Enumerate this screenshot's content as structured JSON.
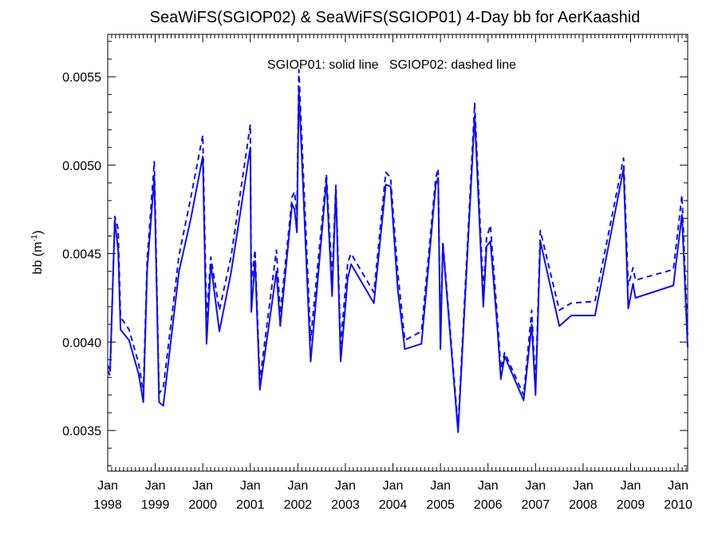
{
  "chart_data": {
    "type": "line",
    "title": "SeaWiFS(SGIOP02) & SeaWiFS(SGIOP01) 4-Day bb for AerKaashid",
    "annotation": "SGIOP01: solid line   SGIOP02: dashed line",
    "ylabel_main": "bb (m",
    "ylabel_sup": "-1",
    "ylabel_close": ")",
    "xlim": [
      1998.0,
      2010.2
    ],
    "ylim": [
      0.00327,
      0.00574
    ],
    "y_ticks": [
      0.0035,
      0.004,
      0.0045,
      0.005,
      0.0055
    ],
    "y_tick_labels": [
      "0.0035",
      "0.0040",
      "0.0045",
      "0.0050",
      "0.0055"
    ],
    "x_ticks": [
      1998,
      1999,
      2000,
      2001,
      2002,
      2003,
      2004,
      2005,
      2006,
      2007,
      2008,
      2009,
      2010
    ],
    "x_tick_month": "Jan",
    "x_tick_years": [
      "1998",
      "1999",
      "2000",
      "2001",
      "2002",
      "2003",
      "2004",
      "2005",
      "2006",
      "2007",
      "2008",
      "2009",
      "2010"
    ],
    "line_color": "#1010e0",
    "grid": false,
    "series": [
      {
        "style": "solid",
        "points": [
          [
            1998.0,
            0.00387
          ],
          [
            1998.05,
            0.00384
          ],
          [
            1998.15,
            0.00469
          ],
          [
            1998.22,
            0.00452
          ],
          [
            1998.27,
            0.00407
          ],
          [
            1998.45,
            0.00401
          ],
          [
            1998.65,
            0.00382
          ],
          [
            1998.75,
            0.00366
          ],
          [
            1998.83,
            0.00441
          ],
          [
            1998.98,
            0.00493
          ],
          [
            1999.08,
            0.00366
          ],
          [
            1999.17,
            0.00364
          ],
          [
            1999.5,
            0.0044
          ],
          [
            1999.75,
            0.0047
          ],
          [
            2000.0,
            0.00505
          ],
          [
            2000.08,
            0.00399
          ],
          [
            2000.17,
            0.00444
          ],
          [
            2000.35,
            0.00406
          ],
          [
            2000.6,
            0.0044
          ],
          [
            2001.0,
            0.0051
          ],
          [
            2001.02,
            0.00417
          ],
          [
            2001.1,
            0.00446
          ],
          [
            2001.2,
            0.00373
          ],
          [
            2001.55,
            0.0044
          ],
          [
            2001.63,
            0.00409
          ],
          [
            2001.88,
            0.00478
          ],
          [
            2001.93,
            0.00475
          ],
          [
            2001.98,
            0.00462
          ],
          [
            2002.02,
            0.00543
          ],
          [
            2002.27,
            0.00389
          ],
          [
            2002.6,
            0.00491
          ],
          [
            2002.72,
            0.00426
          ],
          [
            2002.8,
            0.00486
          ],
          [
            2002.9,
            0.00389
          ],
          [
            2003.05,
            0.00436
          ],
          [
            2003.12,
            0.00444
          ],
          [
            2003.6,
            0.00422
          ],
          [
            2003.85,
            0.00489
          ],
          [
            2003.95,
            0.00488
          ],
          [
            2004.1,
            0.0043
          ],
          [
            2004.25,
            0.00396
          ],
          [
            2004.6,
            0.00399
          ],
          [
            2004.9,
            0.00489
          ],
          [
            2004.95,
            0.00493
          ],
          [
            2005.0,
            0.00396
          ],
          [
            2005.05,
            0.00455
          ],
          [
            2005.37,
            0.00349
          ],
          [
            2005.72,
            0.00528
          ],
          [
            2005.9,
            0.0042
          ],
          [
            2005.97,
            0.00454
          ],
          [
            2006.05,
            0.00457
          ],
          [
            2006.2,
            0.00407
          ],
          [
            2006.27,
            0.00379
          ],
          [
            2006.35,
            0.00392
          ],
          [
            2006.75,
            0.00367
          ],
          [
            2006.92,
            0.0041
          ],
          [
            2007.0,
            0.0037
          ],
          [
            2007.1,
            0.00457
          ],
          [
            2007.5,
            0.00409
          ],
          [
            2007.75,
            0.00415
          ],
          [
            2008.25,
            0.00415
          ],
          [
            2008.85,
            0.00498
          ],
          [
            2008.95,
            0.00419
          ],
          [
            2009.05,
            0.00433
          ],
          [
            2009.1,
            0.00425
          ],
          [
            2009.9,
            0.00432
          ],
          [
            2010.08,
            0.00472
          ],
          [
            2010.2,
            0.00397
          ]
        ]
      },
      {
        "style": "dashed",
        "points": [
          [
            1998.0,
            0.00384
          ],
          [
            1998.05,
            0.00381
          ],
          [
            1998.15,
            0.00471
          ],
          [
            1998.22,
            0.00464
          ],
          [
            1998.27,
            0.00414
          ],
          [
            1998.45,
            0.00407
          ],
          [
            1998.65,
            0.00388
          ],
          [
            1998.75,
            0.00372
          ],
          [
            1998.83,
            0.00447
          ],
          [
            1998.98,
            0.00502
          ],
          [
            1999.08,
            0.00371
          ],
          [
            1999.17,
            0.00374
          ],
          [
            1999.5,
            0.00449
          ],
          [
            1999.75,
            0.00482
          ],
          [
            2000.0,
            0.00517
          ],
          [
            2000.08,
            0.00413
          ],
          [
            2000.17,
            0.00448
          ],
          [
            2000.35,
            0.00418
          ],
          [
            2000.6,
            0.00449
          ],
          [
            2001.0,
            0.00523
          ],
          [
            2001.02,
            0.00433
          ],
          [
            2001.1,
            0.00452
          ],
          [
            2001.2,
            0.00378
          ],
          [
            2001.55,
            0.00452
          ],
          [
            2001.63,
            0.00416
          ],
          [
            2001.88,
            0.00482
          ],
          [
            2001.93,
            0.00485
          ],
          [
            2001.98,
            0.00472
          ],
          [
            2002.02,
            0.00554
          ],
          [
            2002.27,
            0.00401
          ],
          [
            2002.6,
            0.00495
          ],
          [
            2002.72,
            0.00436
          ],
          [
            2002.8,
            0.00489
          ],
          [
            2002.9,
            0.00399
          ],
          [
            2003.05,
            0.00445
          ],
          [
            2003.12,
            0.0045
          ],
          [
            2003.6,
            0.00428
          ],
          [
            2003.85,
            0.00496
          ],
          [
            2003.95,
            0.00493
          ],
          [
            2004.1,
            0.0044
          ],
          [
            2004.25,
            0.00401
          ],
          [
            2004.6,
            0.00406
          ],
          [
            2004.9,
            0.00493
          ],
          [
            2004.95,
            0.00498
          ],
          [
            2005.0,
            0.00402
          ],
          [
            2005.05,
            0.00457
          ],
          [
            2005.37,
            0.00352
          ],
          [
            2005.72,
            0.00535
          ],
          [
            2005.9,
            0.00428
          ],
          [
            2005.97,
            0.00459
          ],
          [
            2006.05,
            0.00466
          ],
          [
            2006.2,
            0.00413
          ],
          [
            2006.27,
            0.00385
          ],
          [
            2006.35,
            0.00394
          ],
          [
            2006.75,
            0.0037
          ],
          [
            2006.92,
            0.00418
          ],
          [
            2007.0,
            0.00375
          ],
          [
            2007.1,
            0.00463
          ],
          [
            2007.5,
            0.00418
          ],
          [
            2007.75,
            0.00422
          ],
          [
            2008.25,
            0.00423
          ],
          [
            2008.85,
            0.00504
          ],
          [
            2008.95,
            0.00432
          ],
          [
            2009.05,
            0.00442
          ],
          [
            2009.1,
            0.00435
          ],
          [
            2009.9,
            0.00441
          ],
          [
            2010.08,
            0.00483
          ],
          [
            2010.2,
            0.00404
          ]
        ]
      }
    ]
  }
}
